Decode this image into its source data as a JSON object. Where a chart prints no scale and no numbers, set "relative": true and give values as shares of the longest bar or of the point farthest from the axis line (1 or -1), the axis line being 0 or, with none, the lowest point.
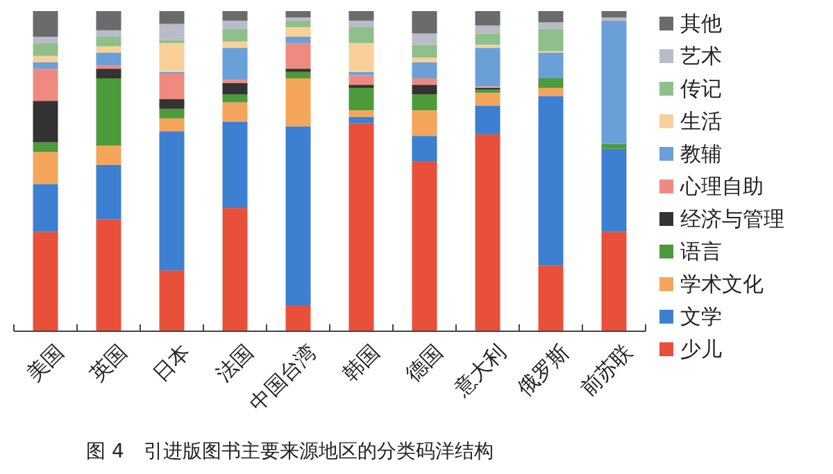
{
  "chart_data": {
    "type": "bar",
    "stacked": true,
    "relative": true,
    "legend": "right",
    "categories": [
      "美国",
      "英国",
      "日本",
      "法国",
      "中国台湾",
      "韩国",
      "德国",
      "意大利",
      "俄罗斯",
      "前苏联"
    ],
    "series": [
      {
        "name": "少儿",
        "color": "#e8503a",
        "values": [
          0.31,
          0.35,
          0.19,
          0.385,
          0.08,
          0.65,
          0.53,
          0.615,
          0.205,
          0.31
        ]
      },
      {
        "name": "文学",
        "color": "#3d7fd0",
        "values": [
          0.15,
          0.17,
          0.435,
          0.27,
          0.56,
          0.02,
          0.08,
          0.09,
          0.53,
          0.26
        ]
      },
      {
        "name": "学术文化",
        "color": "#f5a55a",
        "values": [
          0.1,
          0.06,
          0.04,
          0.06,
          0.15,
          0.02,
          0.08,
          0.04,
          0.025,
          0
        ]
      },
      {
        "name": "语言",
        "color": "#4c9a3a",
        "values": [
          0.03,
          0.21,
          0.03,
          0.025,
          0.02,
          0.07,
          0.05,
          0.01,
          0.03,
          0.015
        ]
      },
      {
        "name": "经济与管理",
        "color": "#333333",
        "values": [
          0.13,
          0.03,
          0.03,
          0.035,
          0.01,
          0.01,
          0.03,
          0.005,
          0,
          0
        ]
      },
      {
        "name": "心理自助",
        "color": "#f08a80",
        "values": [
          0.1,
          0.01,
          0.08,
          0.01,
          0.08,
          0.03,
          0.02,
          0.005,
          0,
          0
        ]
      },
      {
        "name": "教辅",
        "color": "#6a9fd8",
        "values": [
          0.02,
          0.04,
          0.005,
          0.1,
          0.02,
          0.01,
          0.05,
          0.12,
          0.08,
          0.385
        ]
      },
      {
        "name": "生活",
        "color": "#f9d09a",
        "values": [
          0.02,
          0.02,
          0.09,
          0.02,
          0.03,
          0.09,
          0.015,
          0.01,
          0.005,
          0
        ]
      },
      {
        "name": "传记",
        "color": "#8fbf8a",
        "values": [
          0.04,
          0.03,
          0.01,
          0.04,
          0.02,
          0.05,
          0.04,
          0.035,
          0.07,
          0
        ]
      },
      {
        "name": "艺术",
        "color": "#b8bcc8",
        "values": [
          0.02,
          0.02,
          0.05,
          0.025,
          0.01,
          0.02,
          0.035,
          0.025,
          0.02,
          0.01
        ]
      },
      {
        "name": "其他",
        "color": "#6b6b6b",
        "values": [
          0.08,
          0.06,
          0.04,
          0.03,
          0.02,
          0.03,
          0.07,
          0.045,
          0.035,
          0.02
        ]
      }
    ],
    "annotations": [
      "图 4　引进版图书主要来源地区的分类码洋结构"
    ]
  }
}
